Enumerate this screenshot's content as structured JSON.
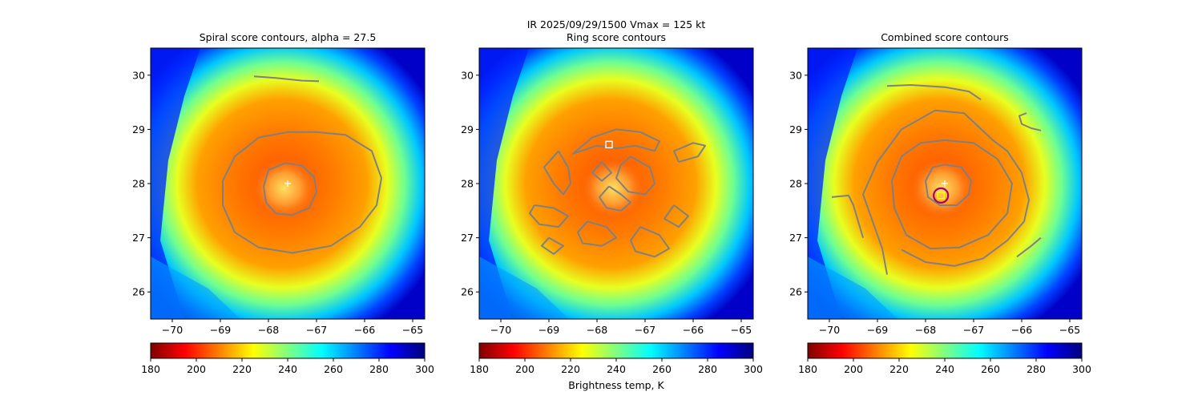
{
  "figure": {
    "suptitle_line1": "IR  2025/09/29/1500    Vmax = 125 kt",
    "colorbar_label": "Brightness temp, K"
  },
  "colormap": {
    "name": "jet_r",
    "stops": [
      "#7f0000",
      "#ff0000",
      "#ff8000",
      "#ffff00",
      "#80ff80",
      "#00ffff",
      "#0080ff",
      "#0000ff",
      "#00007f"
    ]
  },
  "chart_data": [
    {
      "type": "heatmap",
      "title": "Spiral score contours, alpha = 27.5",
      "xlim": [
        -70.45,
        -64.75
      ],
      "ylim": [
        25.5,
        30.5
      ],
      "xticks": [
        -70,
        -69,
        -68,
        -67,
        -66,
        -65
      ],
      "yticks": [
        26,
        27,
        28,
        29,
        30
      ],
      "colorbar": {
        "range": [
          180,
          300
        ],
        "ticks": [
          180,
          200,
          220,
          240,
          260,
          280,
          300
        ]
      },
      "contour_color": "#808080",
      "contours": [
        [
          [
            -67.65,
            28.38
          ],
          [
            -67.3,
            28.33
          ],
          [
            -67.05,
            28.12
          ],
          [
            -67.0,
            27.85
          ],
          [
            -67.15,
            27.55
          ],
          [
            -67.5,
            27.42
          ],
          [
            -67.85,
            27.45
          ],
          [
            -68.05,
            27.65
          ],
          [
            -68.1,
            27.95
          ],
          [
            -68.0,
            28.25
          ],
          [
            -67.65,
            28.38
          ]
        ],
        [
          [
            -67.0,
            28.95
          ],
          [
            -66.4,
            28.9
          ],
          [
            -65.85,
            28.6
          ],
          [
            -65.65,
            28.1
          ],
          [
            -65.75,
            27.6
          ],
          [
            -66.1,
            27.2
          ],
          [
            -66.7,
            26.85
          ],
          [
            -67.5,
            26.72
          ],
          [
            -68.2,
            26.82
          ],
          [
            -68.7,
            27.1
          ],
          [
            -68.95,
            27.6
          ],
          [
            -68.95,
            28.05
          ],
          [
            -68.7,
            28.5
          ],
          [
            -68.2,
            28.85
          ],
          [
            -67.6,
            28.95
          ],
          [
            -67.0,
            28.95
          ]
        ],
        [
          [
            -68.3,
            29.98
          ],
          [
            -67.85,
            29.95
          ],
          [
            -67.3,
            29.9
          ],
          [
            -66.95,
            29.89
          ]
        ]
      ],
      "markers": [
        {
          "kind": "plus",
          "x": -67.6,
          "y": 28.0,
          "color": "#ffffff"
        }
      ]
    },
    {
      "type": "heatmap",
      "title": "Ring score contours",
      "xlim": [
        -70.45,
        -64.75
      ],
      "ylim": [
        25.5,
        30.5
      ],
      "xticks": [
        -70,
        -69,
        -68,
        -67,
        -66,
        -65
      ],
      "yticks": [
        26,
        27,
        28,
        29,
        30
      ],
      "colorbar": {
        "range": [
          180,
          300
        ],
        "ticks": [
          180,
          200,
          220,
          240,
          260,
          280,
          300
        ]
      },
      "contour_color": "#808080",
      "contours": [
        [
          [
            -68.1,
            28.85
          ],
          [
            -67.6,
            29.0
          ],
          [
            -67.1,
            28.95
          ],
          [
            -66.7,
            28.78
          ],
          [
            -66.8,
            28.6
          ],
          [
            -67.2,
            28.7
          ],
          [
            -67.6,
            28.65
          ],
          [
            -68.0,
            28.7
          ],
          [
            -68.5,
            28.55
          ],
          [
            -68.1,
            28.85
          ]
        ],
        [
          [
            -68.8,
            28.6
          ],
          [
            -68.6,
            28.3
          ],
          [
            -68.55,
            28.0
          ],
          [
            -68.7,
            27.8
          ],
          [
            -68.9,
            28.0
          ],
          [
            -69.1,
            28.3
          ],
          [
            -68.8,
            28.6
          ]
        ],
        [
          [
            -67.3,
            28.5
          ],
          [
            -66.9,
            28.3
          ],
          [
            -66.8,
            28.0
          ],
          [
            -67.0,
            27.8
          ],
          [
            -67.35,
            27.85
          ],
          [
            -67.6,
            28.1
          ],
          [
            -67.5,
            28.35
          ],
          [
            -67.3,
            28.5
          ]
        ],
        [
          [
            -67.75,
            27.95
          ],
          [
            -67.5,
            27.8
          ],
          [
            -67.3,
            27.65
          ],
          [
            -67.5,
            27.5
          ],
          [
            -67.8,
            27.55
          ],
          [
            -67.95,
            27.75
          ],
          [
            -67.75,
            27.95
          ]
        ],
        [
          [
            -69.3,
            27.6
          ],
          [
            -68.9,
            27.55
          ],
          [
            -68.6,
            27.4
          ],
          [
            -68.8,
            27.2
          ],
          [
            -69.2,
            27.25
          ],
          [
            -69.4,
            27.45
          ],
          [
            -69.3,
            27.6
          ]
        ],
        [
          [
            -68.2,
            27.3
          ],
          [
            -67.8,
            27.2
          ],
          [
            -67.6,
            27.0
          ],
          [
            -67.9,
            26.85
          ],
          [
            -68.3,
            26.9
          ],
          [
            -68.4,
            27.1
          ],
          [
            -68.2,
            27.3
          ]
        ],
        [
          [
            -67.1,
            27.2
          ],
          [
            -66.7,
            27.05
          ],
          [
            -66.5,
            26.8
          ],
          [
            -66.8,
            26.65
          ],
          [
            -67.2,
            26.75
          ],
          [
            -67.3,
            26.95
          ],
          [
            -67.1,
            27.2
          ]
        ],
        [
          [
            -66.3,
            28.4
          ],
          [
            -65.9,
            28.5
          ],
          [
            -65.75,
            28.7
          ],
          [
            -66.0,
            28.75
          ],
          [
            -66.4,
            28.6
          ],
          [
            -66.3,
            28.4
          ]
        ],
        [
          [
            -67.9,
            28.4
          ],
          [
            -67.7,
            28.2
          ],
          [
            -67.9,
            28.05
          ],
          [
            -68.1,
            28.2
          ],
          [
            -67.9,
            28.4
          ]
        ],
        [
          [
            -66.4,
            27.6
          ],
          [
            -66.1,
            27.4
          ],
          [
            -66.3,
            27.2
          ],
          [
            -66.6,
            27.35
          ],
          [
            -66.4,
            27.6
          ]
        ],
        [
          [
            -69.0,
            27.0
          ],
          [
            -68.7,
            26.85
          ],
          [
            -68.9,
            26.7
          ],
          [
            -69.15,
            26.85
          ],
          [
            -69.0,
            27.0
          ]
        ]
      ],
      "markers": [
        {
          "kind": "square",
          "x": -67.75,
          "y": 28.72,
          "color": "#ffffff"
        }
      ]
    },
    {
      "type": "heatmap",
      "title": "Combined score contours",
      "xlim": [
        -70.45,
        -64.75
      ],
      "ylim": [
        25.5,
        30.5
      ],
      "xticks": [
        -70,
        -69,
        -68,
        -67,
        -66,
        -65
      ],
      "yticks": [
        26,
        27,
        28,
        29,
        30
      ],
      "colorbar": {
        "range": [
          180,
          300
        ],
        "ticks": [
          180,
          200,
          220,
          240,
          260,
          280,
          300
        ]
      },
      "contour_color": "#808080",
      "contours": [
        [
          [
            -67.6,
            28.35
          ],
          [
            -67.25,
            28.3
          ],
          [
            -67.05,
            28.05
          ],
          [
            -67.1,
            27.8
          ],
          [
            -67.35,
            27.6
          ],
          [
            -67.7,
            27.6
          ],
          [
            -67.95,
            27.75
          ],
          [
            -68.0,
            28.05
          ],
          [
            -67.85,
            28.3
          ],
          [
            -67.6,
            28.35
          ]
        ],
        [
          [
            -67.6,
            28.8
          ],
          [
            -67.0,
            28.75
          ],
          [
            -66.5,
            28.45
          ],
          [
            -66.2,
            28.0
          ],
          [
            -66.3,
            27.45
          ],
          [
            -66.7,
            27.05
          ],
          [
            -67.3,
            26.82
          ],
          [
            -67.9,
            26.8
          ],
          [
            -68.4,
            27.05
          ],
          [
            -68.65,
            27.55
          ],
          [
            -68.7,
            28.05
          ],
          [
            -68.5,
            28.5
          ],
          [
            -68.1,
            28.75
          ],
          [
            -67.6,
            28.8
          ]
        ],
        [
          [
            -68.8,
            26.32
          ],
          [
            -68.9,
            26.8
          ],
          [
            -69.1,
            27.3
          ],
          [
            -69.3,
            27.8
          ],
          [
            -69.0,
            28.4
          ],
          [
            -68.5,
            29.0
          ],
          [
            -67.8,
            29.35
          ],
          [
            -67.2,
            29.3
          ],
          [
            -66.9,
            29.05
          ],
          [
            -66.6,
            28.8
          ],
          [
            -66.3,
            28.6
          ],
          [
            -66.0,
            28.2
          ],
          [
            -65.85,
            27.7
          ],
          [
            -65.95,
            27.3
          ],
          [
            -66.3,
            26.95
          ],
          [
            -66.8,
            26.62
          ],
          [
            -67.4,
            26.48
          ],
          [
            -68.0,
            26.55
          ],
          [
            -68.5,
            26.78
          ]
        ],
        [
          [
            -68.8,
            29.8
          ],
          [
            -68.3,
            29.82
          ],
          [
            -67.6,
            29.78
          ],
          [
            -67.1,
            29.7
          ],
          [
            -66.85,
            29.55
          ]
        ],
        [
          [
            -65.6,
            28.98
          ],
          [
            -65.8,
            29.02
          ],
          [
            -66.0,
            29.1
          ],
          [
            -66.05,
            29.25
          ],
          [
            -65.9,
            29.3
          ]
        ],
        [
          [
            -65.6,
            27.0
          ],
          [
            -65.8,
            26.85
          ],
          [
            -66.1,
            26.65
          ]
        ],
        [
          [
            -69.95,
            27.75
          ],
          [
            -69.6,
            27.78
          ],
          [
            -69.5,
            27.6
          ],
          [
            -69.4,
            27.3
          ],
          [
            -69.3,
            27.0
          ]
        ]
      ],
      "markers": [
        {
          "kind": "plus",
          "x": -67.6,
          "y": 28.0,
          "color": "#ffffff"
        },
        {
          "kind": "circle",
          "x": -67.68,
          "y": 27.78,
          "color": "#a0006e"
        },
        {
          "kind": "square",
          "x": -67.68,
          "y": 27.78,
          "color": "#ffff00"
        }
      ]
    }
  ]
}
